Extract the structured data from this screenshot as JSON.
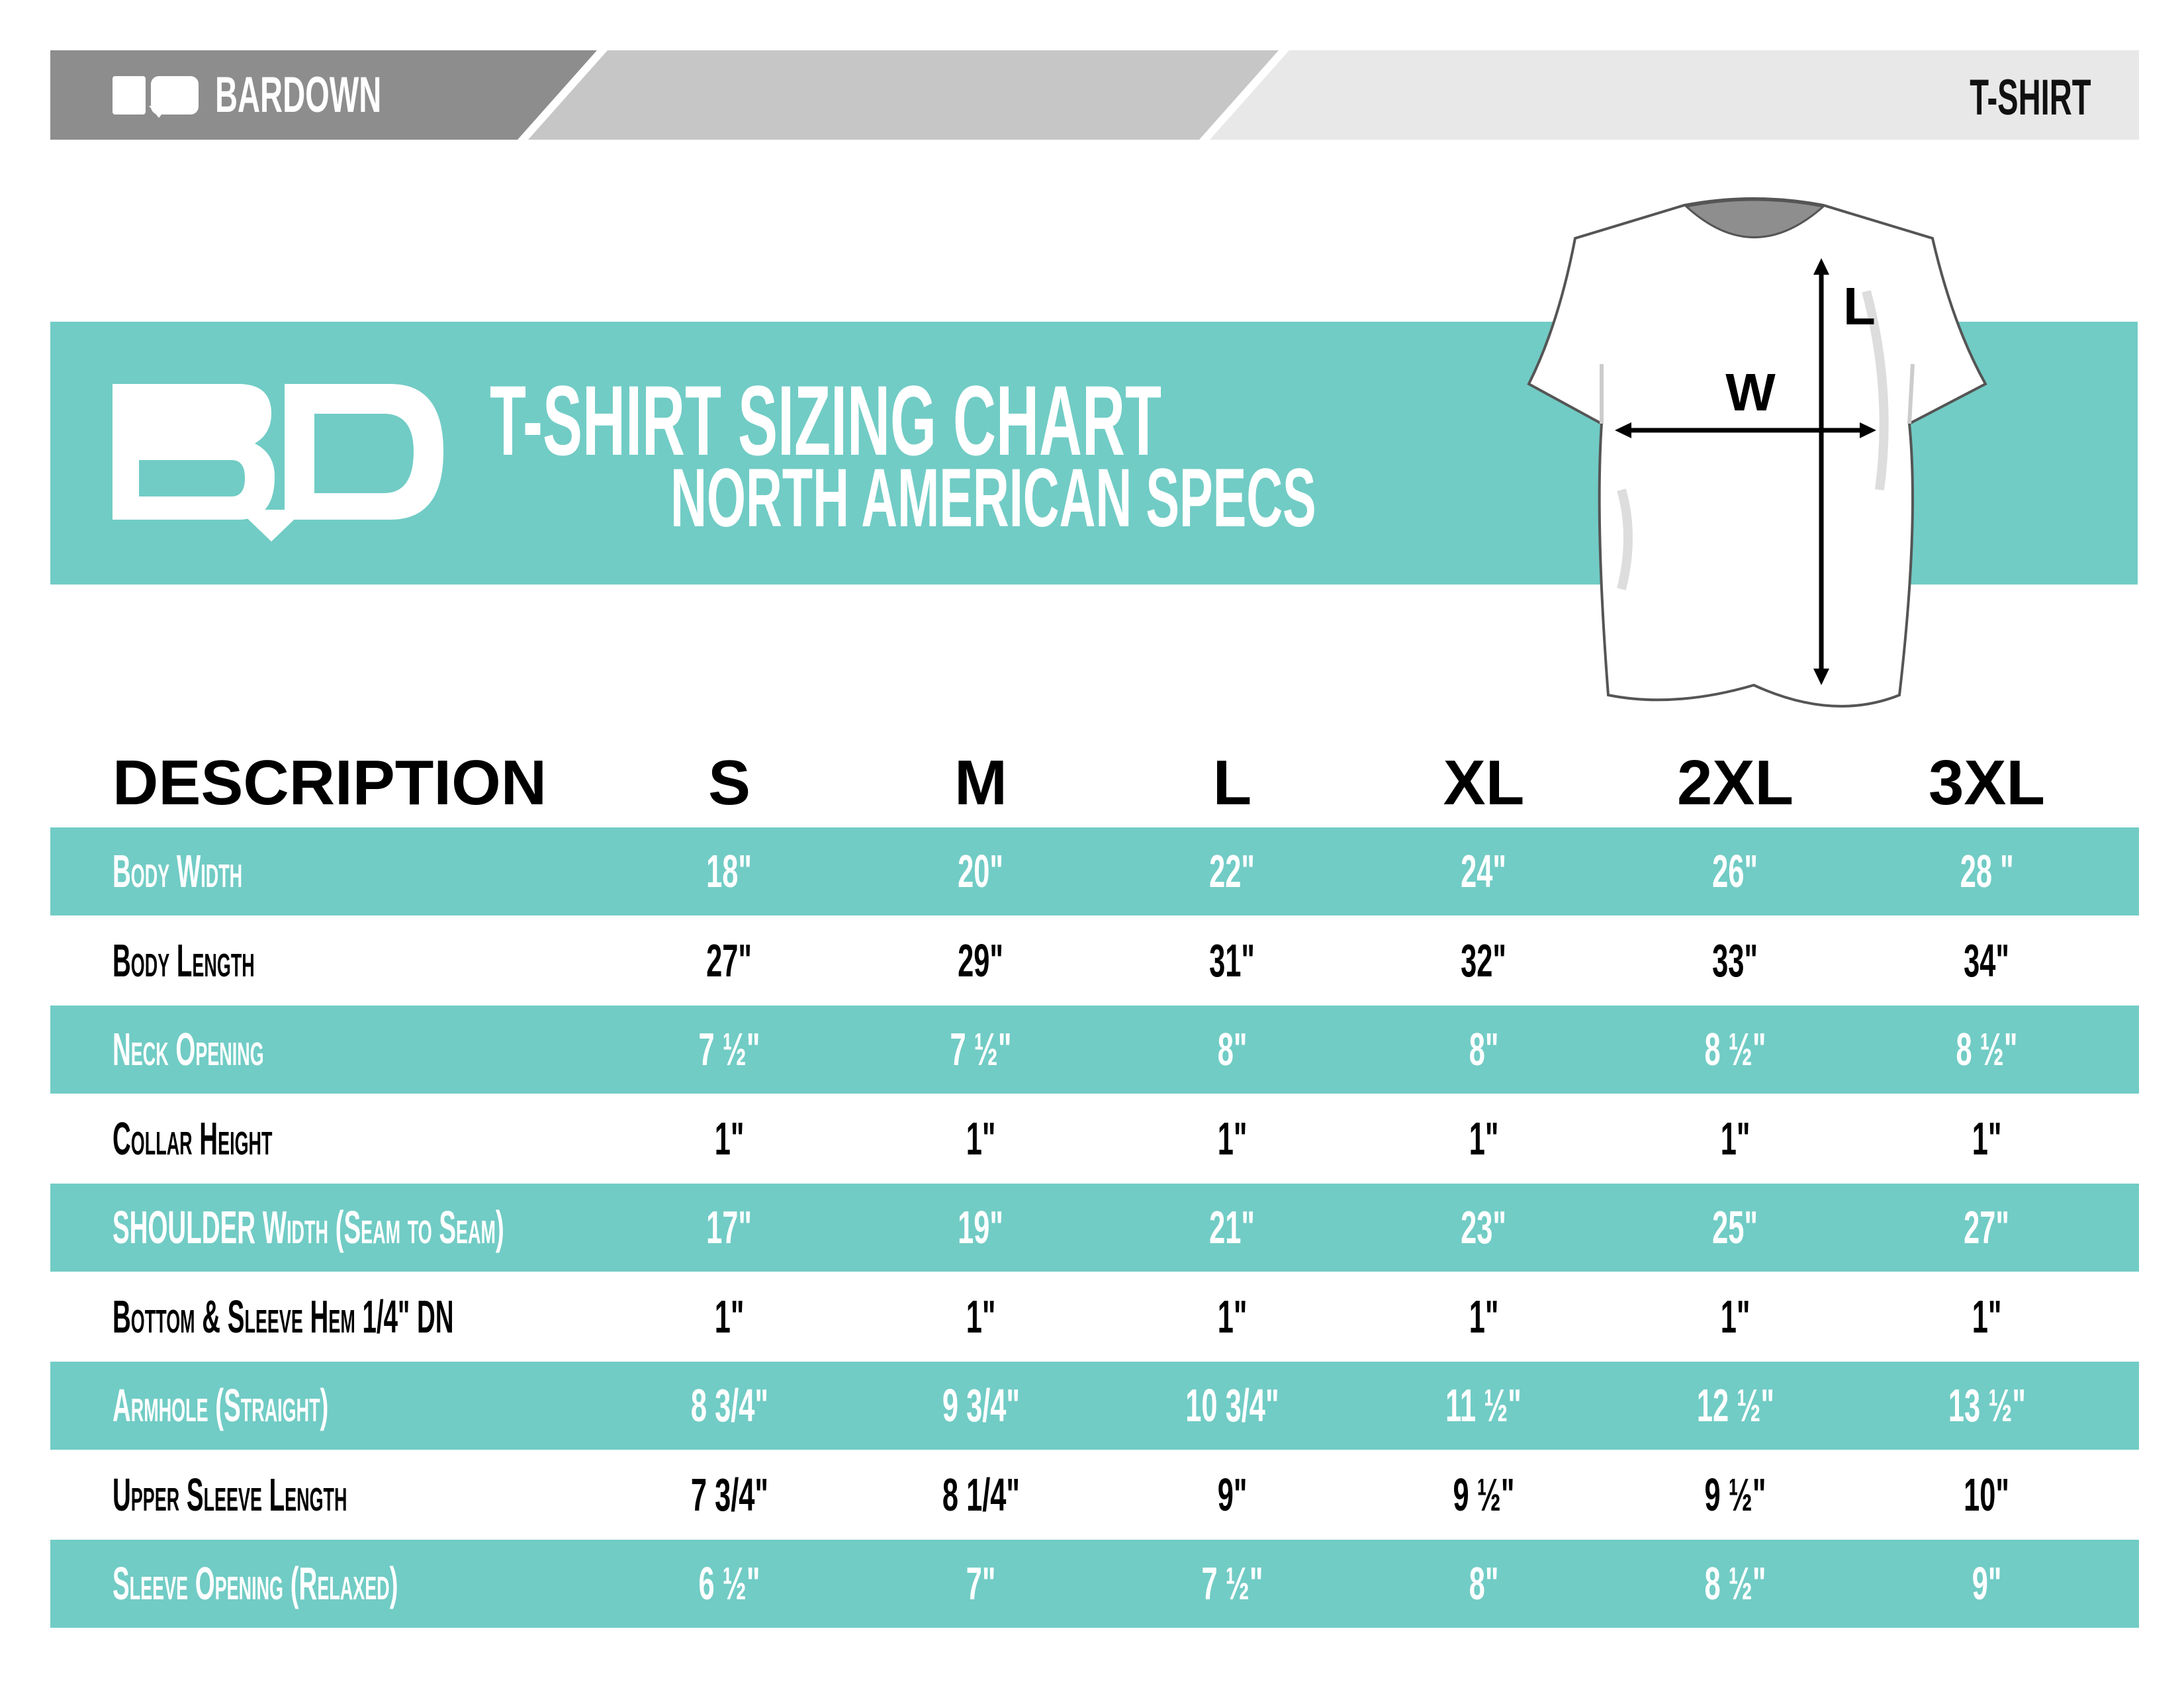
{
  "header": {
    "brand": "BARDOWN",
    "product": "T-SHIRT"
  },
  "banner": {
    "title": "T-SHIRT SIZING CHART",
    "subtitle": "NORTH AMERICAN SPECS",
    "logo_text": "BD"
  },
  "diagram": {
    "width_label": "W",
    "length_label": "L"
  },
  "table": {
    "columns": [
      "DESCRIPTION",
      "S",
      "M",
      "L",
      "XL",
      "2XL",
      "3XL"
    ],
    "rows": [
      {
        "label": "Body Width",
        "values": [
          "18\"",
          "20\"",
          "22\"",
          "24\"",
          "26\"",
          "28 \""
        ]
      },
      {
        "label": "Body Length",
        "values": [
          "27\"",
          "29\"",
          "31\"",
          "32\"",
          "33\"",
          "34\""
        ]
      },
      {
        "label": "Neck Opening",
        "values": [
          "7 ½\"",
          "7 ½\"",
          "8\"",
          "8\"",
          "8 ½\"",
          "8 ½\""
        ]
      },
      {
        "label": "Collar Height",
        "values": [
          "1\"",
          "1\"",
          "1\"",
          "1\"",
          "1\"",
          "1\""
        ]
      },
      {
        "label": "SHOULDER Width (Seam to Seam)",
        "values": [
          "17\"",
          "19\"",
          "21\"",
          "23\"",
          "25\"",
          "27\""
        ]
      },
      {
        "label": "Bottom & Sleeve Hem 1/4\" DN",
        "values": [
          "1\"",
          "1\"",
          "1\"",
          "1\"",
          "1\"",
          "1\""
        ]
      },
      {
        "label": "Armhole (Straight)",
        "values": [
          "8 3/4\"",
          "9 3/4\"",
          "10 3/4\"",
          "11 ½\"",
          "12 ½\"",
          "13 ½\""
        ]
      },
      {
        "label": "Upper Sleeve Length",
        "values": [
          "7 3/4\"",
          "8 1/4\"",
          "9\"",
          "9 ½\"",
          "9 ½\"",
          "10\""
        ]
      },
      {
        "label": "Sleeve Opening (Relaxed)",
        "values": [
          "6 ½\"",
          "7\"",
          "7 ½\"",
          "8\"",
          "8 ½\"",
          "9\""
        ]
      }
    ]
  },
  "colors": {
    "teal": "#71ccc5",
    "dark_gray": "#8e8d8e",
    "mid_gray": "#c6c6c6",
    "light_gray": "#e8e8e8"
  }
}
